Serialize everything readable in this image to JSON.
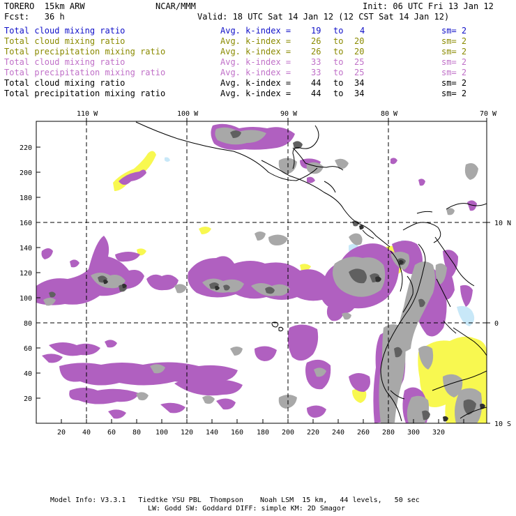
{
  "header": {
    "model": "TORERO  15km ARW",
    "center": "NCAR/MMM",
    "init": "Init: 06 UTC Fri 13 Jan 12",
    "fcst": "Fcst:   36 h",
    "valid": "Valid: 18 UTC Sat 14 Jan 12 (12 CST Sat 14 Jan 12)"
  },
  "legend": [
    {
      "field": "Total cloud mixing ratio",
      "label": "Avg. k-index =",
      "k1": "19",
      "to": "to",
      "k2": "4",
      "sm": "sm= 2",
      "color": "#1010c8"
    },
    {
      "field": "Total cloud mixing ratio",
      "label": "Avg. k-index =",
      "k1": "26",
      "to": "to",
      "k2": "20",
      "sm": "sm= 2",
      "color": "#8a8a00"
    },
    {
      "field": "Total precipitation mixing ratio",
      "label": "Avg. k-index =",
      "k1": "26",
      "to": "to",
      "k2": "20",
      "sm": "sm= 2",
      "color": "#8a8a00"
    },
    {
      "field": "Total cloud mixing ratio",
      "label": "Avg. k-index =",
      "k1": "33",
      "to": "to",
      "k2": "25",
      "sm": "sm= 2",
      "color": "#c070c8"
    },
    {
      "field": "Total precipitation mixing ratio",
      "label": "Avg. k-index =",
      "k1": "33",
      "to": "to",
      "k2": "25",
      "sm": "sm= 2",
      "color": "#c070c8"
    },
    {
      "field": "Total cloud mixing ratio",
      "label": "Avg. k-index =",
      "k1": "44",
      "to": "to",
      "k2": "34",
      "sm": "sm= 2",
      "color": "#000000"
    },
    {
      "field": "Total precipitation mixing ratio",
      "label": "Avg. k-index =",
      "k1": "44",
      "to": "to",
      "k2": "34",
      "sm": "sm= 2",
      "color": "#000000"
    }
  ],
  "map": {
    "lon_labels": [
      "110 W",
      "100 W",
      "90 W",
      "80 W",
      "70 W"
    ],
    "lat_labels": [
      "10 N",
      "0",
      "10 S"
    ],
    "x_ticks": [
      "20",
      "40",
      "60",
      "80",
      "100",
      "120",
      "140",
      "160",
      "180",
      "200",
      "220",
      "240",
      "260",
      "280",
      "300",
      "320"
    ],
    "y_ticks": [
      "20",
      "40",
      "60",
      "80",
      "100",
      "120",
      "140",
      "160",
      "180",
      "200",
      "220"
    ],
    "colors": {
      "gray": "#a8a8a8",
      "dark": "#606060",
      "darkest": "#303030",
      "purple": "#b060c0",
      "yellow": "#f8f850",
      "lightblue": "#c8e8f8"
    }
  },
  "footer": {
    "line1": "Model Info: V3.3.1   Tiedtke YSU PBL  Thompson    Noah LSM  15 km,   44 levels,   50 sec",
    "line2": "LW: Godd SW: Goddard DIFF: simple KM: 2D Smagor"
  }
}
